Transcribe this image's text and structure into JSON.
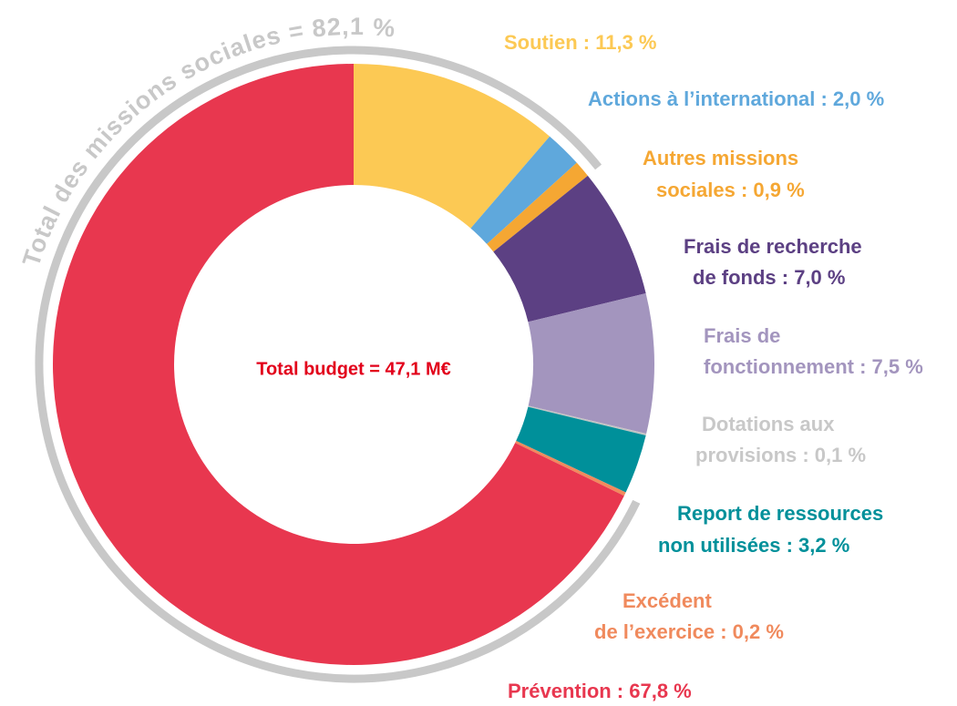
{
  "chart_data": {
    "type": "donut",
    "center_label": "Total budget = 47,1 M€",
    "arc_label": "Total des missions sociales = 82,1 %",
    "labels": [
      [
        "Soutien : 11,3 %"
      ],
      [
        "Actions à l’international : 2,0 %"
      ],
      [
        "Autres missions",
        "sociales : 0,9 %"
      ],
      [
        "Frais de recherche",
        "de fonds : 7,0 %"
      ],
      [
        "Frais de",
        "fonctionnement : 7,5 %"
      ],
      [
        "Dotations aux",
        "provisions : 0,1 %"
      ],
      [
        "Report de ressources",
        "non utilisées : 3,2 %"
      ],
      [
        "Excédent",
        "de l’exercice : 0,2 %"
      ],
      [
        "Prévention : 67,8 %"
      ]
    ],
    "values": [
      11.3,
      2.0,
      0.9,
      7.0,
      7.5,
      0.1,
      3.2,
      0.2,
      67.8
    ],
    "colors": [
      "#fcc954",
      "#5fa8dc",
      "#f5a733",
      "#5c4083",
      "#a395be",
      "#c4c4c4",
      "#00909a",
      "#f08a5d",
      "#e8374f"
    ],
    "label_colors": [
      "#fcc954",
      "#5fa8dc",
      "#f5a733",
      "#5c4083",
      "#a395be",
      "#c8c8c8",
      "#00909a",
      "#f08a5d",
      "#e8374f"
    ]
  }
}
